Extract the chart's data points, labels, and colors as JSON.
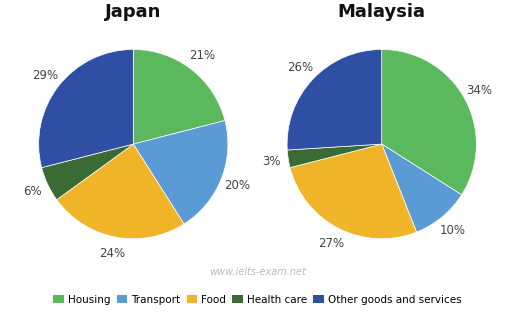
{
  "japan": {
    "title": "Japan",
    "values": [
      21,
      20,
      24,
      6,
      29
    ],
    "startangle": 90
  },
  "malaysia": {
    "title": "Malaysia",
    "values": [
      34,
      10,
      27,
      3,
      26
    ],
    "startangle": 90
  },
  "categories": [
    "Housing",
    "Transport",
    "Food",
    "Health care",
    "Other goods and services"
  ],
  "colors": [
    "#5cb85c",
    "#5b9bd5",
    "#f0b429",
    "#3a6b35",
    "#2e4fa3"
  ],
  "watermark": "www.ielts-exam.net",
  "background": "#ffffff",
  "title_fontsize": 13,
  "label_fontsize": 8.5,
  "legend_fontsize": 7.5
}
